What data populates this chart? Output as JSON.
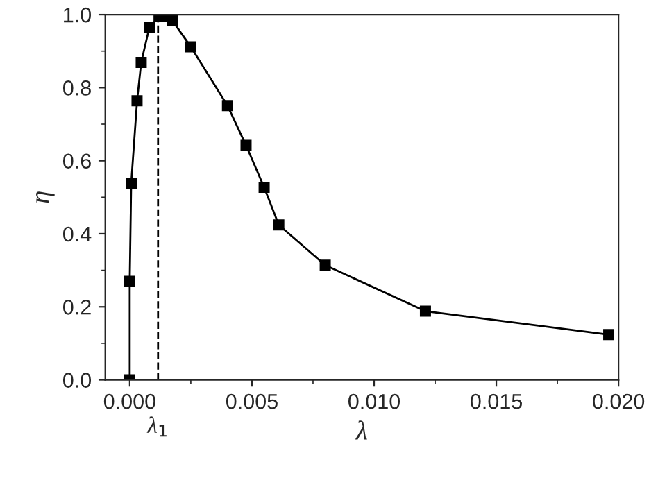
{
  "chart_data": {
    "type": "line",
    "xlabel": "λ",
    "ylabel": "η",
    "x": [
      0.0,
      0.0,
      6e-05,
      0.0003,
      0.00047,
      0.0008,
      0.0012,
      0.00144,
      0.00175,
      0.0025,
      0.004,
      0.00476,
      0.0055,
      0.0061,
      0.008,
      0.0121,
      0.0196
    ],
    "series": [
      {
        "color": "#000000",
        "values": [
          0.0,
          0.27,
          0.537,
          0.764,
          0.869,
          0.964,
          0.995,
          0.995,
          0.983,
          0.912,
          0.751,
          0.642,
          0.527,
          0.424,
          0.314,
          0.188,
          0.124
        ]
      }
    ],
    "xlim": [
      -0.001,
      0.02
    ],
    "xticks": [
      {
        "value": 0.0,
        "label": "0.000"
      },
      {
        "value": 0.005,
        "label": "0.005"
      },
      {
        "value": 0.01,
        "label": "0.010"
      },
      {
        "value": 0.015,
        "label": "0.015"
      },
      {
        "value": 0.02,
        "label": "0.020"
      }
    ],
    "ylim": [
      0.0,
      1.0
    ],
    "yticks": [
      {
        "value": 0.0,
        "label": "0.0"
      },
      {
        "value": 0.2,
        "label": "0.2"
      },
      {
        "value": 0.4,
        "label": "0.4"
      },
      {
        "value": 0.6,
        "label": "0.6"
      },
      {
        "value": 0.8,
        "label": "0.8"
      },
      {
        "value": 1.0,
        "label": "1.0"
      }
    ],
    "ref_lines": [
      {
        "axis": "x",
        "value": 0.00116,
        "label": "λ$_{1}$",
        "color": "#000000",
        "line_style": "dashed"
      }
    ],
    "marker": "square",
    "line_style": "solid",
    "grid": false,
    "legend": false
  }
}
